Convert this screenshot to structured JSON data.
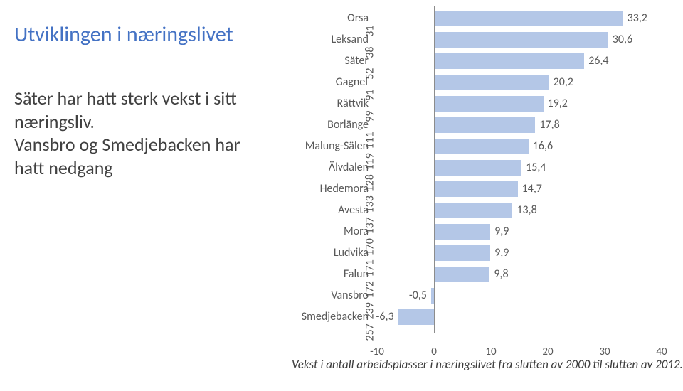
{
  "title": "Utviklingen i næringslivet",
  "subtitle": "Säter har hatt sterk vekst i sitt næringsliv.\nVansbro og Smedjebacken har hatt nedgang",
  "chart": {
    "type": "bar-horizontal",
    "xmin": -10,
    "xmax": 40,
    "xticks": [
      -10,
      0,
      10,
      20,
      30,
      40
    ],
    "bar_color": "#b4c7e7",
    "label_color": "#595959",
    "fontsize_label": 16,
    "rows": [
      {
        "label": "Orsa",
        "value": 33.2,
        "vtick": 31
      },
      {
        "label": "Leksand",
        "value": 30.6,
        "vtick": 38
      },
      {
        "label": "Säter",
        "value": 26.4,
        "vtick": 52
      },
      {
        "label": "Gagnef",
        "value": 20.2,
        "vtick": 91
      },
      {
        "label": "Rättvik",
        "value": 19.2,
        "vtick": 99
      },
      {
        "label": "Borlänge",
        "value": 17.8,
        "vtick": 111
      },
      {
        "label": "Malung-Sälen",
        "value": 16.6,
        "vtick": 119
      },
      {
        "label": "Älvdalen",
        "value": 15.4,
        "vtick": 128
      },
      {
        "label": "Hedemora",
        "value": 14.7,
        "vtick": 133
      },
      {
        "label": "Avesta",
        "value": 13.8,
        "vtick": 137
      },
      {
        "label": "Mora",
        "value": 9.9,
        "vtick": 170
      },
      {
        "label": "Ludvika",
        "value": 9.9,
        "vtick": 171
      },
      {
        "label": "Falun",
        "value": 9.8,
        "vtick": 172
      },
      {
        "label": "Vansbro",
        "value": -0.5,
        "vtick": 239
      },
      {
        "label": "Smedjebacken",
        "value": -6.3,
        "vtick": 257
      }
    ]
  },
  "caption": "Vekst i antall arbeidsplasser i næringslivet fra slutten av 2000 til slutten av 2012."
}
